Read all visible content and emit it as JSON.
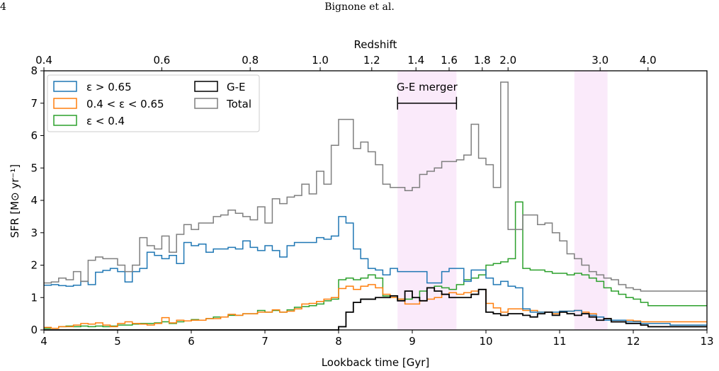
{
  "page": {
    "number": "4",
    "running_title": "Bignone et al."
  },
  "chart_data": {
    "type": "line",
    "style": "step",
    "xlabel": "Lookback time [Gyr]",
    "ylabel": "SFR [M⊙ yr⁻¹]",
    "top_axis_label": "Redshift",
    "xlim": [
      4,
      13
    ],
    "ylim": [
      0,
      8
    ],
    "x_ticks": [
      "4",
      "5",
      "6",
      "7",
      "8",
      "9",
      "10",
      "11",
      "12",
      "13"
    ],
    "y_ticks": [
      "0",
      "1",
      "2",
      "3",
      "4",
      "5",
      "6",
      "7",
      "8"
    ],
    "top_ticks": [
      {
        "label": "0.4",
        "lookback": 4.0
      },
      {
        "label": "0.6",
        "lookback": 5.6
      },
      {
        "label": "0.8",
        "lookback": 6.8
      },
      {
        "label": "1.0",
        "lookback": 7.75
      },
      {
        "label": "1.2",
        "lookback": 8.45
      },
      {
        "label": "1.4",
        "lookback": 9.05
      },
      {
        "label": "1.6",
        "lookback": 9.5
      },
      {
        "label": "1.8",
        "lookback": 9.95
      },
      {
        "label": "2.0",
        "lookback": 10.3
      },
      {
        "label": "3.0",
        "lookback": 11.55
      },
      {
        "label": "4.0",
        "lookback": 12.2
      }
    ],
    "bin_width": 0.1,
    "x_start": 4.0,
    "series": [
      {
        "name": "ε > 0.65",
        "color": "#1f77b4",
        "values": [
          1.38,
          1.4,
          1.37,
          1.35,
          1.38,
          1.5,
          1.4,
          1.78,
          1.84,
          1.9,
          1.8,
          1.48,
          1.8,
          1.9,
          2.4,
          2.3,
          2.2,
          2.3,
          2.05,
          2.7,
          2.6,
          2.65,
          2.4,
          2.5,
          2.5,
          2.55,
          2.5,
          2.75,
          2.55,
          2.45,
          2.6,
          2.45,
          2.25,
          2.6,
          2.7,
          2.7,
          2.7,
          2.85,
          2.8,
          2.9,
          3.5,
          3.3,
          2.5,
          2.2,
          1.9,
          1.85,
          1.7,
          1.9,
          1.8,
          1.8,
          1.8,
          1.8,
          1.45,
          1.45,
          1.8,
          1.9,
          1.9,
          1.5,
          1.85,
          1.85,
          1.6,
          1.4,
          1.5,
          1.35,
          1.3,
          0.65,
          0.55,
          0.55,
          0.55,
          0.55,
          0.58,
          0.58,
          0.6,
          0.5,
          0.45,
          0.4,
          0.3,
          0.3,
          0.3,
          0.25,
          0.25,
          0.2,
          0.2,
          0.2,
          0.2,
          0.15,
          0.15,
          0.15,
          0.15,
          0.15
        ]
      },
      {
        "name": "0.4 < ε < 0.65",
        "color": "#ff7f0e",
        "values": [
          0.08,
          0.05,
          0.1,
          0.1,
          0.15,
          0.2,
          0.18,
          0.22,
          0.15,
          0.1,
          0.2,
          0.25,
          0.2,
          0.18,
          0.15,
          0.2,
          0.38,
          0.22,
          0.3,
          0.28,
          0.3,
          0.3,
          0.35,
          0.35,
          0.4,
          0.48,
          0.45,
          0.5,
          0.5,
          0.55,
          0.55,
          0.62,
          0.55,
          0.58,
          0.65,
          0.8,
          0.82,
          0.88,
          0.95,
          1.0,
          1.28,
          1.35,
          1.25,
          1.35,
          1.4,
          1.3,
          1.1,
          1.0,
          0.95,
          0.8,
          0.8,
          0.9,
          0.95,
          1.0,
          1.1,
          1.15,
          1.1,
          1.15,
          1.2,
          1.25,
          0.82,
          0.68,
          0.55,
          0.65,
          0.65,
          0.6,
          0.6,
          0.55,
          0.55,
          0.5,
          0.58,
          0.58,
          0.6,
          0.55,
          0.5,
          0.4,
          0.35,
          0.3,
          0.3,
          0.3,
          0.28,
          0.25,
          0.25,
          0.25,
          0.25,
          0.25,
          0.25,
          0.25,
          0.25,
          0.25
        ]
      },
      {
        "name": "ε < 0.4",
        "color": "#2ca02c",
        "values": [
          0.05,
          0.05,
          0.1,
          0.12,
          0.1,
          0.12,
          0.1,
          0.12,
          0.1,
          0.12,
          0.15,
          0.15,
          0.18,
          0.2,
          0.2,
          0.22,
          0.25,
          0.2,
          0.25,
          0.28,
          0.32,
          0.3,
          0.35,
          0.4,
          0.4,
          0.45,
          0.45,
          0.5,
          0.5,
          0.6,
          0.55,
          0.6,
          0.55,
          0.62,
          0.7,
          0.72,
          0.75,
          0.8,
          0.9,
          0.95,
          1.55,
          1.6,
          1.55,
          1.6,
          1.7,
          1.6,
          1.05,
          1.0,
          0.95,
          0.95,
          1.0,
          1.2,
          1.3,
          1.35,
          1.3,
          1.25,
          1.4,
          1.55,
          1.6,
          1.7,
          2.0,
          2.05,
          2.1,
          2.2,
          3.95,
          1.9,
          1.85,
          1.85,
          1.8,
          1.75,
          1.75,
          1.7,
          1.75,
          1.7,
          1.6,
          1.5,
          1.3,
          1.2,
          1.1,
          1.0,
          0.95,
          0.85,
          0.75,
          0.75,
          0.75,
          0.75,
          0.75,
          0.75,
          0.75,
          0.75
        ]
      },
      {
        "name": "G-E",
        "color": "#000000",
        "values": [
          0,
          0,
          0,
          0,
          0,
          0,
          0,
          0,
          0,
          0,
          0,
          0,
          0,
          0,
          0,
          0,
          0,
          0,
          0,
          0,
          0,
          0,
          0,
          0,
          0,
          0,
          0,
          0,
          0,
          0,
          0,
          0,
          0,
          0,
          0,
          0,
          0,
          0,
          0,
          0,
          0.1,
          0.55,
          0.85,
          0.95,
          0.95,
          1.0,
          1.0,
          1.05,
          0.9,
          1.2,
          1.0,
          0.9,
          1.3,
          1.2,
          1.1,
          1.0,
          1.0,
          1.0,
          1.1,
          1.25,
          0.55,
          0.5,
          0.45,
          0.5,
          0.5,
          0.45,
          0.4,
          0.5,
          0.55,
          0.45,
          0.55,
          0.5,
          0.45,
          0.5,
          0.4,
          0.3,
          0.35,
          0.25,
          0.25,
          0.2,
          0.2,
          0.15,
          0.1,
          0.1,
          0.1,
          0.1,
          0.1,
          0.1,
          0.1,
          0.1
        ]
      },
      {
        "name": "Total",
        "color": "#7f7f7f",
        "values": [
          1.45,
          1.48,
          1.6,
          1.55,
          1.8,
          1.5,
          2.15,
          2.25,
          2.2,
          2.2,
          2.0,
          1.8,
          2.0,
          2.85,
          2.6,
          2.5,
          2.9,
          2.4,
          2.95,
          3.25,
          3.1,
          3.3,
          3.3,
          3.5,
          3.55,
          3.7,
          3.6,
          3.5,
          3.4,
          3.8,
          3.3,
          4.05,
          3.9,
          4.1,
          4.15,
          4.5,
          4.2,
          4.9,
          4.5,
          5.7,
          6.5,
          6.5,
          5.6,
          5.8,
          5.5,
          5.1,
          4.5,
          4.4,
          4.4,
          4.3,
          4.4,
          4.8,
          4.9,
          5.0,
          5.2,
          5.2,
          5.25,
          5.4,
          6.35,
          5.3,
          5.1,
          4.4,
          7.65,
          3.1,
          3.1,
          3.55,
          3.55,
          3.25,
          3.3,
          3.0,
          2.75,
          2.35,
          2.2,
          2.0,
          1.8,
          1.7,
          1.6,
          1.55,
          1.4,
          1.3,
          1.25,
          1.2,
          1.2,
          1.2,
          1.2,
          1.2,
          1.2,
          1.2,
          1.2,
          1.2
        ]
      }
    ],
    "legend": {
      "placement": "top-left",
      "entries": [
        {
          "label": "ε > 0.65",
          "color": "#1f77b4"
        },
        {
          "label": "0.4 < ε < 0.65",
          "color": "#ff7f0e"
        },
        {
          "label": "ε < 0.4",
          "color": "#2ca02c"
        },
        {
          "label": "G-E",
          "color": "#000000"
        },
        {
          "label": "Total",
          "color": "#7f7f7f"
        }
      ]
    },
    "shaded_regions": [
      {
        "x": [
          8.8,
          9.6
        ],
        "color": "#f6d9f6"
      },
      {
        "x": [
          11.2,
          11.65
        ],
        "color": "#f6d9f6"
      }
    ],
    "annotations": [
      {
        "text": "G-E merger",
        "x_range": [
          8.8,
          9.6
        ],
        "y": 7.0
      }
    ]
  }
}
